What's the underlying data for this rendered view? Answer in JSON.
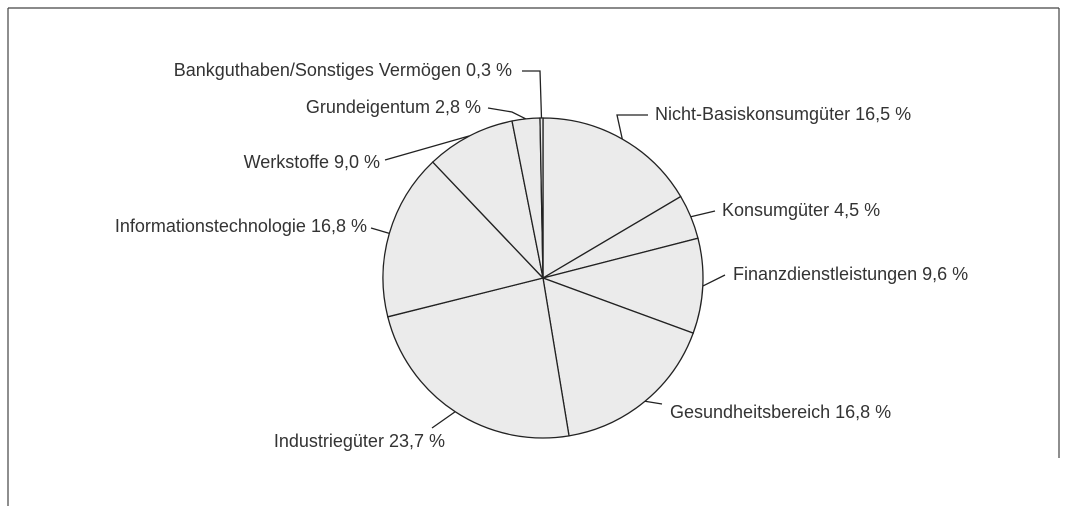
{
  "chart_data": {
    "type": "pie",
    "categories": [
      "Nicht-Basiskonsumgüter",
      "Konsumgüter",
      "Finanzdienstleistungen",
      "Gesundheitsbereich",
      "Industriegüter",
      "Informationstechnologie",
      "Werkstoffe",
      "Grundeigentum",
      "Bankguthaben/Sonstiges Vermögen"
    ],
    "values": [
      16.5,
      4.5,
      9.6,
      16.8,
      23.7,
      16.8,
      9.0,
      2.8,
      0.3
    ],
    "value_labels": [
      "16,5 %",
      "4,5 %",
      "9,6 %",
      "16,8 %",
      "23,7 %",
      "16,8 %",
      "9,0 %",
      "2,8 %",
      "0,3 %"
    ],
    "color": "#ebebeb"
  }
}
